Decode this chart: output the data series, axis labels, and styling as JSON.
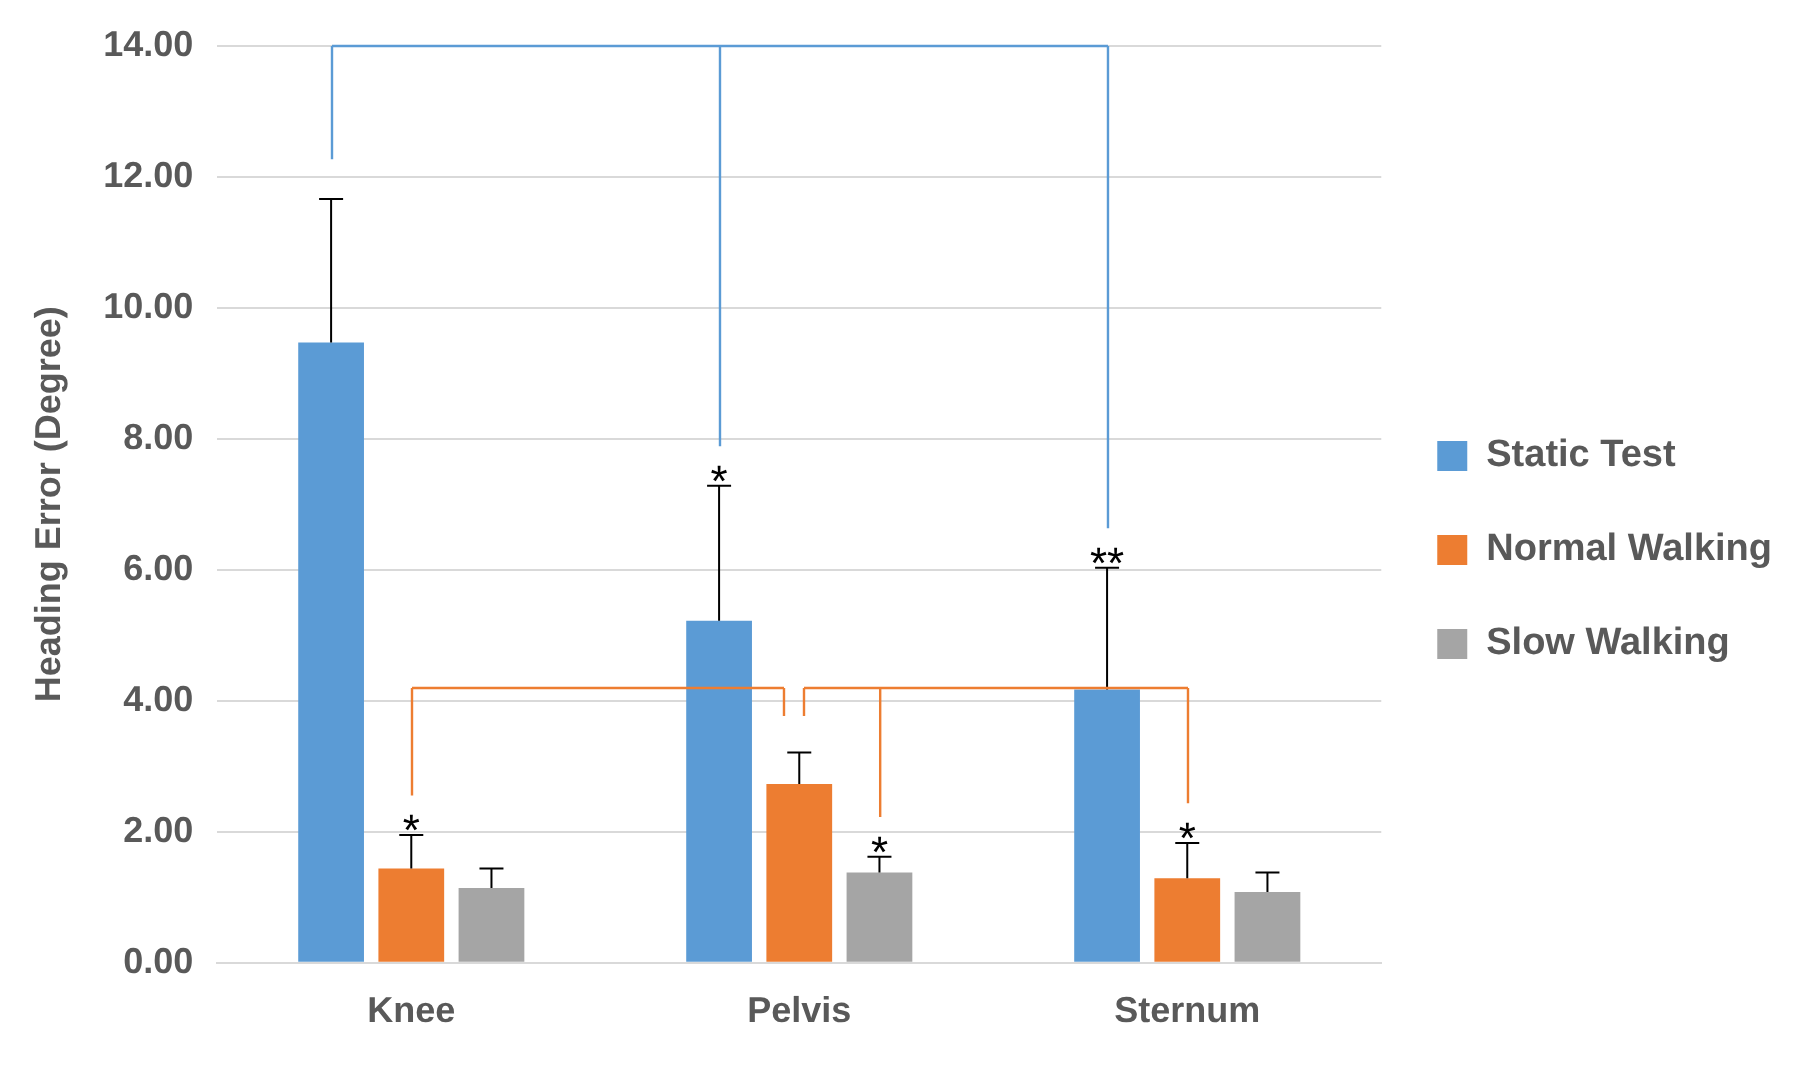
{
  "chart_data": {
    "type": "bar",
    "ylabel": "Heading Error (Degree)",
    "categories": [
      "Knee",
      "Pelvis",
      "Sternum"
    ],
    "series": [
      {
        "name": "Static Test",
        "color": "#5b9bd5",
        "values": [
          9.47,
          5.22,
          4.17
        ],
        "errors": [
          [
            9.47,
            11.66
          ],
          [
            5.22,
            7.28
          ],
          [
            4.17,
            6.03
          ]
        ]
      },
      {
        "name": "Normal Walking",
        "color": "#ed7d31",
        "values": [
          1.44,
          2.73,
          1.29
        ],
        "errors": [
          [
            1.44,
            1.95
          ],
          [
            2.73,
            3.21
          ],
          [
            1.29,
            1.83
          ]
        ]
      },
      {
        "name": "Slow Walking",
        "color": "#a5a5a5",
        "values": [
          1.14,
          1.38,
          1.08
        ],
        "errors": [
          [
            1.14,
            1.44
          ],
          [
            1.38,
            1.62
          ],
          [
            1.08,
            1.38
          ]
        ]
      }
    ],
    "ylim": [
      0,
      14
    ],
    "yticks": [
      {
        "value": 0,
        "label": "0.00"
      },
      {
        "value": 2,
        "label": "2.00"
      },
      {
        "value": 4,
        "label": "4.00"
      },
      {
        "value": 6,
        "label": "6.00"
      },
      {
        "value": 8,
        "label": "8.00"
      },
      {
        "value": 10,
        "label": "10.00"
      },
      {
        "value": 12,
        "label": "12.00"
      },
      {
        "value": 14,
        "label": "14.00"
      }
    ],
    "grid": "y",
    "legend": "right",
    "annotations": [
      "*",
      "*",
      "*",
      "**",
      "*"
    ]
  }
}
